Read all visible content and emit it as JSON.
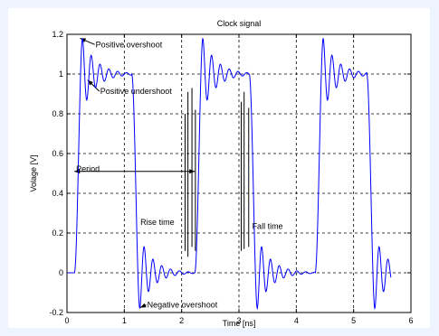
{
  "chart_data": {
    "type": "line",
    "title": "Clock signal",
    "xlabel": "Time [ns]",
    "ylabel": "Volage [V]",
    "xlim": [
      0,
      6
    ],
    "ylim": [
      -0.2,
      1.2
    ],
    "xticks": [
      0,
      1,
      2,
      3,
      4,
      5,
      6
    ],
    "yticks": [
      -0.2,
      0,
      0.2,
      0.4,
      0.6,
      0.8,
      1,
      1.2
    ],
    "xtick_labels": [
      "0",
      "1",
      "2",
      "3",
      "4",
      "5",
      "6"
    ],
    "ytick_labels": [
      "-0.2",
      "0",
      "0.2",
      "0.4",
      "0.6",
      "0.8",
      "1",
      "1.2"
    ],
    "grid": true,
    "line_color": "#0000ff",
    "signal": {
      "period_ns": 2.1,
      "start_ns": 0,
      "end_ns": 5.65,
      "rise_edges_ns": [
        0.13,
        2.23,
        4.33
      ],
      "fall_edges_ns": [
        1.13,
        3.18,
        5.23
      ],
      "high_level_v": 1.0,
      "low_level_v": 0.0,
      "ringing_amplitude_v": 0.18,
      "ringing_frequency_ghz": 6.5,
      "ringing_decay_per_ns": 4.2
    },
    "annotations": [
      {
        "text": "Positive overshoot",
        "text_x": 0.5,
        "text_y": 1.135,
        "arrow_to": [
          0.23,
          1.18
        ]
      },
      {
        "text": "Positive undershoot",
        "text_x": 0.58,
        "text_y": 0.9,
        "arrow_to": [
          0.36,
          0.97
        ]
      },
      {
        "text": "Period",
        "text_x": 0.16,
        "text_y": 0.51
      },
      {
        "text": "Rise time",
        "text_x": 1.28,
        "text_y": 0.24
      },
      {
        "text": "Fall time",
        "text_x": 3.23,
        "text_y": 0.22
      },
      {
        "text": "Negative overshoot",
        "text_x": 1.4,
        "text_y": -0.175,
        "arrow_to": [
          1.28,
          -0.175
        ]
      }
    ],
    "period_arrow": {
      "x_start": 0.13,
      "x_end": 2.23,
      "y": 0.51
    },
    "rise_markers": [
      {
        "x": 2.06,
        "y0": 0.11,
        "y1": 0.8
      },
      {
        "x": 2.11,
        "y0": 0.08,
        "y1": 0.91
      },
      {
        "x": 2.18,
        "y0": 0.13,
        "y1": 0.93
      },
      {
        "x": 2.24,
        "y0": 0.11,
        "y1": 0.82
      }
    ],
    "fall_markers": [
      {
        "x": 3.04,
        "y0": 0.11,
        "y1": 0.86
      },
      {
        "x": 3.09,
        "y0": 0.12,
        "y1": 0.91
      },
      {
        "x": 3.17,
        "y0": 0.13,
        "y1": 0.83
      }
    ]
  }
}
